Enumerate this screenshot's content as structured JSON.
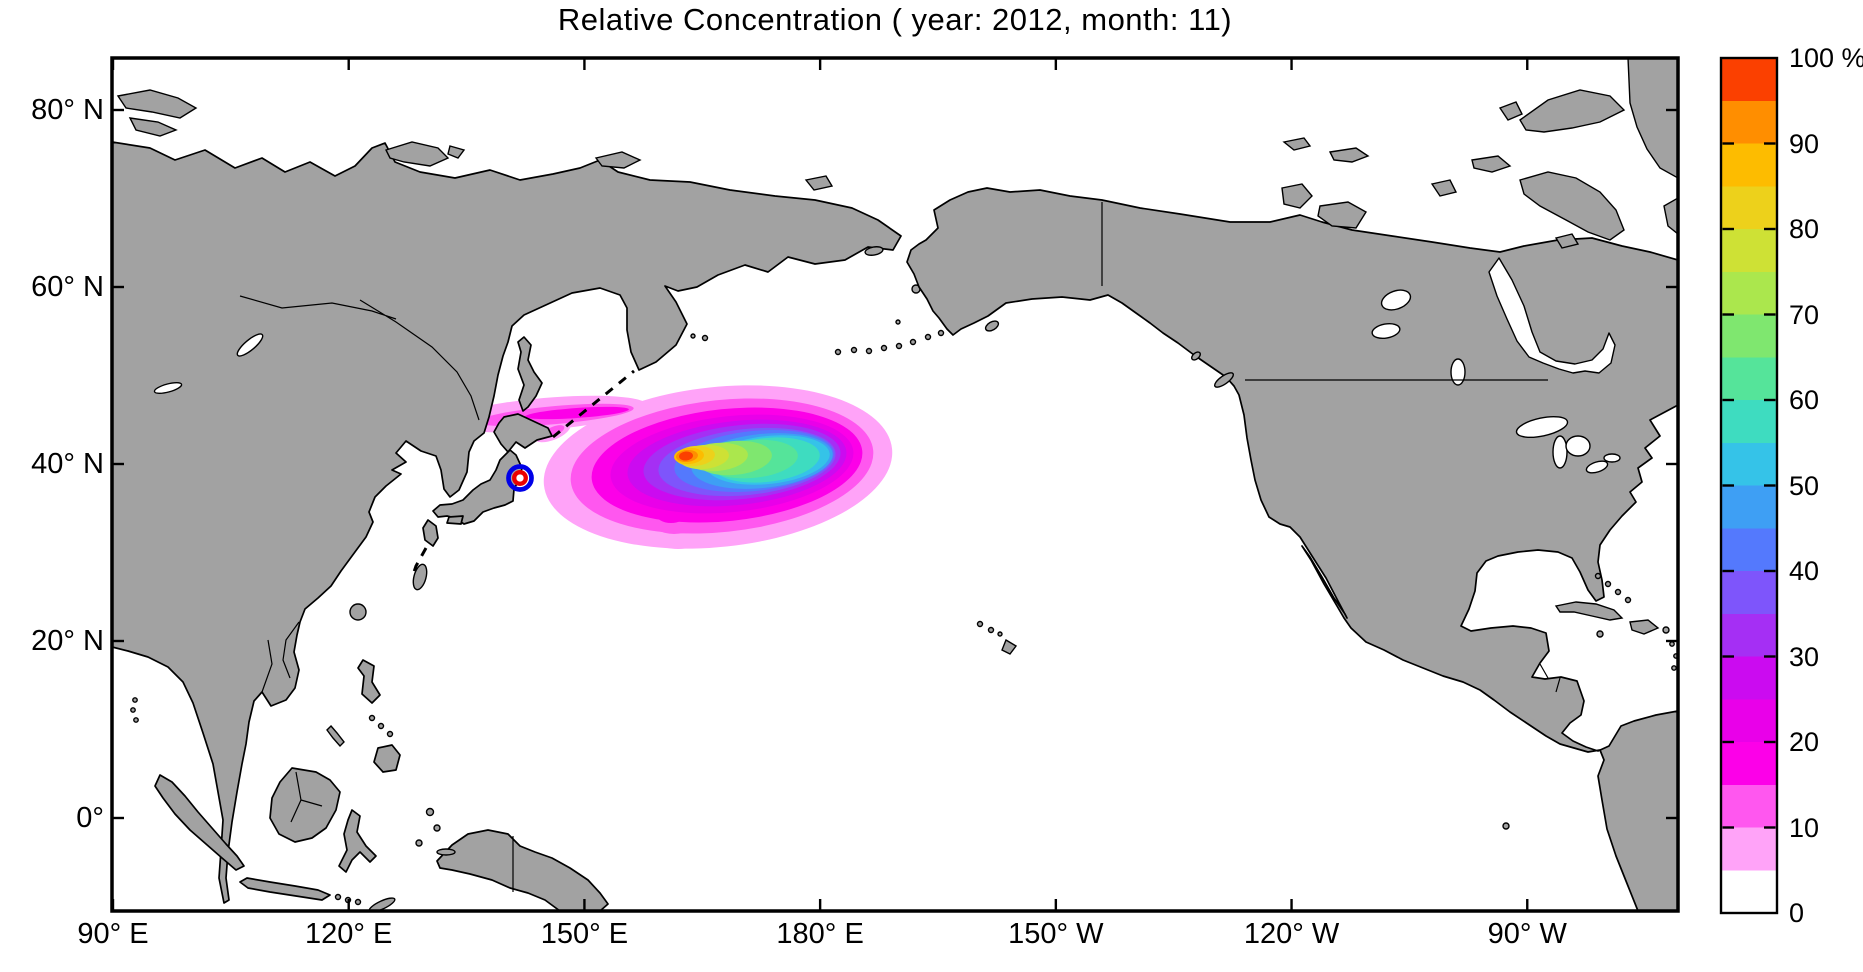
{
  "title": "Relative Concentration ( year: 2012, month: 11)",
  "colors": {
    "background": "#FFFFFF",
    "ocean": "#FFFFFF",
    "land": "#A2A2A2",
    "coast": "#000000",
    "frame": "#000000",
    "text": "#000000",
    "marker_blue": "#0000E8",
    "marker_red": "#EB0000"
  },
  "axes": {
    "lat_ticks": [
      {
        "label": "80° N",
        "deg": 80
      },
      {
        "label": "60° N",
        "deg": 60
      },
      {
        "label": "40° N",
        "deg": 40
      },
      {
        "label": "20° N",
        "deg": 20
      },
      {
        "label": "0°",
        "deg": 0
      }
    ],
    "lon_ticks": [
      {
        "label": "90° E",
        "deg": 90
      },
      {
        "label": "120° E",
        "deg": 120
      },
      {
        "label": "150° E",
        "deg": 150
      },
      {
        "label": "180° E",
        "deg": 180
      },
      {
        "label": "150° W",
        "deg": 210
      },
      {
        "label": "120° W",
        "deg": 240
      },
      {
        "label": "90° W",
        "deg": 270
      }
    ]
  },
  "colorbar": {
    "units": "%",
    "tick_labels": [
      {
        "label": "100 %",
        "value": 100
      },
      {
        "label": "90",
        "value": 90
      },
      {
        "label": "80",
        "value": 80
      },
      {
        "label": "70",
        "value": 70
      },
      {
        "label": "60",
        "value": 60
      },
      {
        "label": "50",
        "value": 50
      },
      {
        "label": "40",
        "value": 40
      },
      {
        "label": "30",
        "value": 30
      },
      {
        "label": "20",
        "value": 20
      },
      {
        "label": "10",
        "value": 10
      },
      {
        "label": "0",
        "value": 0
      }
    ],
    "segments": [
      {
        "from": 0,
        "to": 5,
        "color": "#FFFFFF"
      },
      {
        "from": 5,
        "to": 10,
        "color": "#FFA3F8"
      },
      {
        "from": 10,
        "to": 15,
        "color": "#FF57EF"
      },
      {
        "from": 15,
        "to": 20,
        "color": "#FC00E8"
      },
      {
        "from": 20,
        "to": 25,
        "color": "#E900E9"
      },
      {
        "from": 25,
        "to": 30,
        "color": "#CB0BF0"
      },
      {
        "from": 30,
        "to": 35,
        "color": "#A52FF4"
      },
      {
        "from": 35,
        "to": 40,
        "color": "#7E55FB"
      },
      {
        "from": 40,
        "to": 45,
        "color": "#5479FD"
      },
      {
        "from": 45,
        "to": 50,
        "color": "#3E9FF4"
      },
      {
        "from": 50,
        "to": 55,
        "color": "#35C3E8"
      },
      {
        "from": 55,
        "to": 60,
        "color": "#3EDCC0"
      },
      {
        "from": 60,
        "to": 65,
        "color": "#55E49A"
      },
      {
        "from": 65,
        "to": 70,
        "color": "#7FE76F"
      },
      {
        "from": 70,
        "to": 75,
        "color": "#ABE74D"
      },
      {
        "from": 75,
        "to": 80,
        "color": "#CEE135"
      },
      {
        "from": 80,
        "to": 85,
        "color": "#EDD11B"
      },
      {
        "from": 85,
        "to": 90,
        "color": "#FDBC00"
      },
      {
        "from": 90,
        "to": 95,
        "color": "#FF8E00"
      },
      {
        "from": 95,
        "to": 100,
        "color": "#FB4000"
      }
    ]
  },
  "marker": {
    "lon_east_deg": 141.9,
    "lat_deg": 38.4,
    "style": "red ring inside blue ring"
  },
  "chart_data": {
    "type": "heatmap",
    "title": "Relative Concentration ( year: 2012, month: 11)",
    "variable": "Relative Concentration",
    "year": 2012,
    "month": 11,
    "units": "%",
    "projection": "equirectangular, Pacific-centered",
    "map_extent": {
      "lon_east_deg": [
        90,
        289
      ],
      "lat_deg": [
        -10.5,
        86
      ]
    },
    "x_tick_labels": [
      "90° E",
      "120° E",
      "150° E",
      "180° E",
      "150° W",
      "120° W",
      "90° W"
    ],
    "y_tick_labels": [
      "80° N",
      "60° N",
      "40° N",
      "20° N",
      "0°"
    ],
    "contour_levels_pct": [
      0,
      5,
      10,
      15,
      20,
      25,
      30,
      35,
      40,
      45,
      50,
      55,
      60,
      65,
      70,
      75,
      80,
      85,
      90,
      95,
      100
    ],
    "colorbar_tick_values_pct": [
      0,
      10,
      20,
      30,
      40,
      50,
      60,
      70,
      80,
      90,
      100
    ],
    "legend_position": "right colorbar, 0 at bottom to 100 % at top",
    "grid": false,
    "plume": {
      "peak_value_pct": 100,
      "peak_location": {
        "lon_east_deg": 163,
        "lat_deg": 41
      },
      "main_extent": {
        "lon_east_deg": [
          145,
          189
        ],
        "lat_deg": [
          31,
          45
        ]
      },
      "shape": "zonally elongated patch east of Japan; warm (60-100%) core in the western half, broad 40-60% cyan-blue lobe extending eastward, surrounded by magenta/pink 5-30% fringe",
      "filament": "thin 5-20% pink/magenta filament extending west-northwest from the plume toward the Hokkaido / Kuril coast (to about 133° E, 43° N)",
      "secondary_lobe": "small 5-20% bulge on the southwest edge of the plume near 162° E, 34° N"
    },
    "source_marker": {
      "lon_east_deg": 141.9,
      "lat_deg": 38.4,
      "description": "concentric red-and-blue circle marker on the east coast of Honshu, Japan"
    }
  }
}
